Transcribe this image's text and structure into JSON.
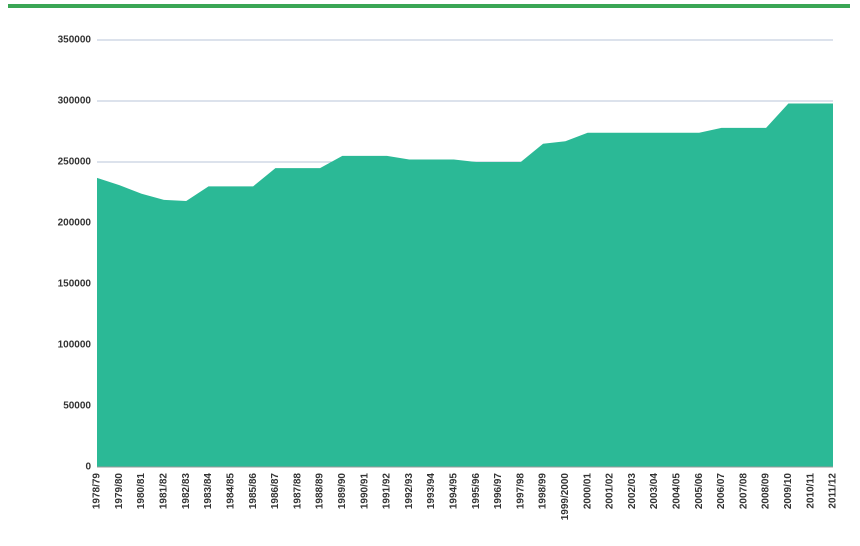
{
  "chart_data": {
    "type": "area",
    "categories": [
      "1978/79",
      "1979/80",
      "1980/81",
      "1981/82",
      "1982/83",
      "1983/84",
      "1984/85",
      "1985/86",
      "1986/87",
      "1987/88",
      "1988/89",
      "1989/90",
      "1990/91",
      "1991/92",
      "1992/93",
      "1993/94",
      "1994/95",
      "1995/96",
      "1996/97",
      "1997/98",
      "1998/99",
      "1999/2000",
      "2000/01",
      "2001/02",
      "2002/03",
      "2003/04",
      "2004/05",
      "2005/06",
      "2006/07",
      "2007/08",
      "2008/09",
      "2009/10",
      "2010/11",
      "2011/12"
    ],
    "values": [
      237000,
      231000,
      224000,
      219000,
      218000,
      230000,
      230000,
      230000,
      245000,
      245000,
      245000,
      255000,
      255000,
      255000,
      252000,
      252000,
      252000,
      250000,
      250000,
      250000,
      265000,
      267000,
      274000,
      274000,
      274000,
      274000,
      274000,
      274000,
      278000,
      278000,
      278000,
      298000,
      298000,
      298000
    ],
    "color": "#2bb996",
    "ylim": [
      0,
      350000
    ],
    "yticks": [
      0,
      50000,
      100000,
      150000,
      200000,
      250000,
      300000,
      350000
    ],
    "grid": true
  }
}
